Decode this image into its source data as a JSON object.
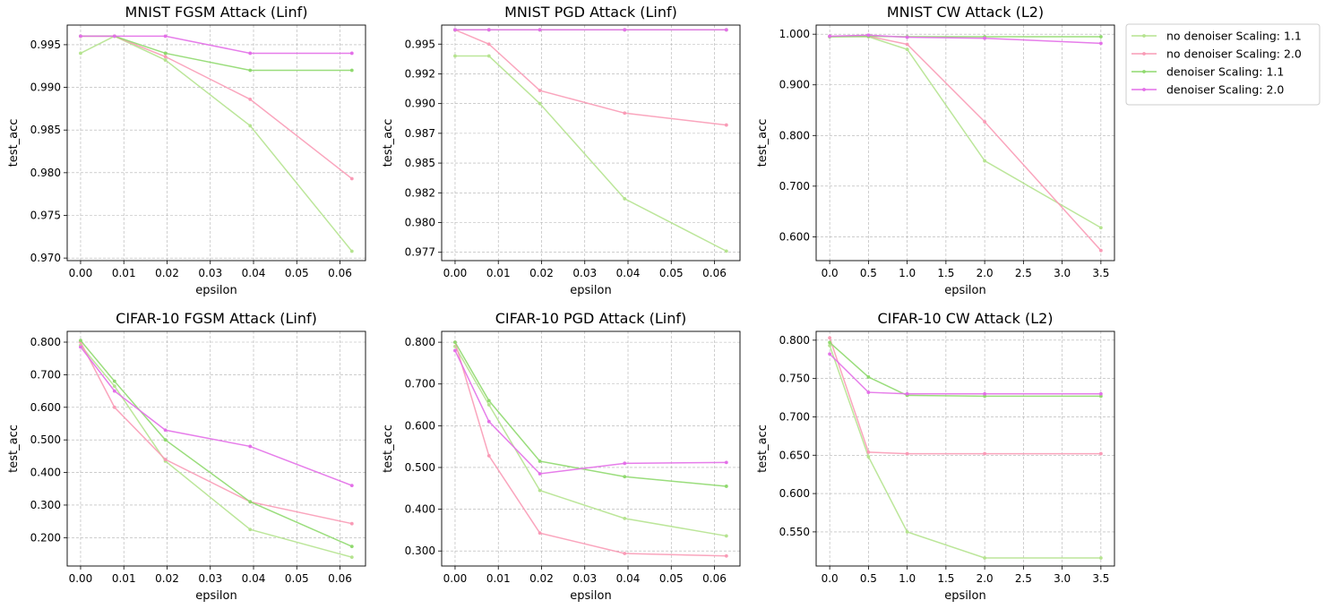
{
  "chart_data": [
    {
      "type": "line",
      "title": "MNIST FGSM Attack (Linf)",
      "xlabel": "epsilon",
      "ylabel": "test_acc",
      "xlim": [
        -0.0031,
        0.0659
      ],
      "ylim": [
        0.9697,
        0.9973
      ],
      "xticks": [
        0.0,
        0.01,
        0.02,
        0.03,
        0.04,
        0.05,
        0.06
      ],
      "xtick_labels": [
        "0.00",
        "0.01",
        "0.02",
        "0.03",
        "0.04",
        "0.05",
        "0.06"
      ],
      "yticks": [
        0.97,
        0.975,
        0.98,
        0.985,
        0.99,
        0.995
      ],
      "ytick_labels": [
        "0.970",
        "0.975",
        "0.980",
        "0.985",
        "0.990",
        "0.995"
      ],
      "grid": true,
      "x": [
        0.0,
        0.00784,
        0.01961,
        0.03922,
        0.06275
      ],
      "series": [
        {
          "name": "no denoiser Scaling: 1.1",
          "values": [
            0.994,
            0.996,
            0.9932,
            0.9855,
            0.9708
          ]
        },
        {
          "name": "no denoiser Scaling: 2.0",
          "values": [
            0.996,
            0.996,
            0.9936,
            0.9886,
            0.9793
          ]
        },
        {
          "name": "denoiser Scaling: 1.1",
          "values": [
            0.996,
            0.996,
            0.994,
            0.992,
            0.992
          ]
        },
        {
          "name": "denoiser Scaling: 2.0",
          "values": [
            0.996,
            0.996,
            0.996,
            0.994,
            0.994
          ]
        }
      ]
    },
    {
      "type": "line",
      "title": "MNIST PGD Attack (Linf)",
      "xlabel": "epsilon",
      "ylabel": "test_acc",
      "xlim": [
        -0.0031,
        0.0659
      ],
      "ylim": [
        0.9768,
        0.9966
      ],
      "xticks": [
        0.0,
        0.01,
        0.02,
        0.03,
        0.04,
        0.05,
        0.06
      ],
      "xtick_labels": [
        "0.00",
        "0.01",
        "0.02",
        "0.03",
        "0.04",
        "0.05",
        "0.06"
      ],
      "yticks": [
        0.9775,
        0.98,
        0.9825,
        0.985,
        0.9875,
        0.99,
        0.9925,
        0.995
      ],
      "ytick_labels": [
        "0.977",
        "0.980",
        "0.982",
        "0.985",
        "0.987",
        "0.990",
        "0.992",
        "0.995"
      ],
      "grid": true,
      "x": [
        0.0,
        0.00784,
        0.01961,
        0.03922,
        0.06275
      ],
      "series": [
        {
          "name": "no denoiser Scaling: 1.1",
          "values": [
            0.994,
            0.994,
            0.99,
            0.982,
            0.9776
          ]
        },
        {
          "name": "no denoiser Scaling: 2.0",
          "values": [
            0.9962,
            0.995,
            0.9911,
            0.9892,
            0.9882
          ]
        },
        {
          "name": "denoiser Scaling: 1.1",
          "values": [
            0.9962,
            0.9962,
            0.9962,
            0.9962,
            0.9962
          ]
        },
        {
          "name": "denoiser Scaling: 2.0",
          "values": [
            0.9962,
            0.9962,
            0.9962,
            0.9962,
            0.9962
          ]
        }
      ]
    },
    {
      "type": "line",
      "title": "MNIST CW Attack (L2)",
      "xlabel": "epsilon",
      "ylabel": "test_acc",
      "xlim": [
        -0.175,
        3.675
      ],
      "ylim": [
        0.553,
        1.018
      ],
      "xticks": [
        0.0,
        0.5,
        1.0,
        1.5,
        2.0,
        2.5,
        3.0,
        3.5
      ],
      "xtick_labels": [
        "0.0",
        "0.5",
        "1.0",
        "1.5",
        "2.0",
        "2.5",
        "3.0",
        "3.5"
      ],
      "yticks": [
        0.6,
        0.7,
        0.8,
        0.9,
        1.0
      ],
      "ytick_labels": [
        "0.600",
        "0.700",
        "0.800",
        "0.900",
        "1.000"
      ],
      "grid": true,
      "x": [
        0.0,
        0.5,
        1.0,
        2.0,
        3.5
      ],
      "series": [
        {
          "name": "no denoiser Scaling: 1.1",
          "values": [
            0.995,
            0.995,
            0.97,
            0.75,
            0.618
          ]
        },
        {
          "name": "no denoiser Scaling: 2.0",
          "values": [
            0.996,
            0.996,
            0.98,
            0.827,
            0.573
          ]
        },
        {
          "name": "denoiser Scaling: 1.1",
          "values": [
            0.995,
            0.996,
            0.995,
            0.995,
            0.995
          ]
        },
        {
          "name": "denoiser Scaling: 2.0",
          "values": [
            0.996,
            0.998,
            0.994,
            0.992,
            0.982
          ]
        }
      ]
    },
    {
      "type": "line",
      "title": "CIFAR-10 FGSM Attack (Linf)",
      "xlabel": "epsilon",
      "ylabel": "test_acc",
      "xlim": [
        -0.0031,
        0.0659
      ],
      "ylim": [
        0.113,
        0.833
      ],
      "xticks": [
        0.0,
        0.01,
        0.02,
        0.03,
        0.04,
        0.05,
        0.06
      ],
      "xtick_labels": [
        "0.00",
        "0.01",
        "0.02",
        "0.03",
        "0.04",
        "0.05",
        "0.06"
      ],
      "yticks": [
        0.2,
        0.3,
        0.4,
        0.5,
        0.6,
        0.7,
        0.8
      ],
      "ytick_labels": [
        "0.200",
        "0.300",
        "0.400",
        "0.500",
        "0.600",
        "0.700",
        "0.800"
      ],
      "grid": true,
      "x": [
        0.0,
        0.00784,
        0.01961,
        0.03922,
        0.06275
      ],
      "series": [
        {
          "name": "no denoiser Scaling: 1.1",
          "values": [
            0.79,
            0.665,
            0.435,
            0.225,
            0.14
          ]
        },
        {
          "name": "no denoiser Scaling: 2.0",
          "values": [
            0.8,
            0.6,
            0.44,
            0.31,
            0.243
          ]
        },
        {
          "name": "denoiser Scaling: 1.1",
          "values": [
            0.805,
            0.68,
            0.5,
            0.31,
            0.173
          ]
        },
        {
          "name": "denoiser Scaling: 2.0",
          "values": [
            0.785,
            0.65,
            0.53,
            0.48,
            0.36
          ]
        }
      ]
    },
    {
      "type": "line",
      "title": "CIFAR-10 PGD Attack (Linf)",
      "xlabel": "epsilon",
      "ylabel": "test_acc",
      "xlim": [
        -0.0031,
        0.0659
      ],
      "ylim": [
        0.264,
        0.826
      ],
      "xticks": [
        0.0,
        0.01,
        0.02,
        0.03,
        0.04,
        0.05,
        0.06
      ],
      "xtick_labels": [
        "0.00",
        "0.01",
        "0.02",
        "0.03",
        "0.04",
        "0.05",
        "0.06"
      ],
      "yticks": [
        0.3,
        0.4,
        0.5,
        0.6,
        0.7,
        0.8
      ],
      "ytick_labels": [
        "0.300",
        "0.400",
        "0.500",
        "0.600",
        "0.700",
        "0.800"
      ],
      "grid": true,
      "x": [
        0.0,
        0.00784,
        0.01961,
        0.03922,
        0.06275
      ],
      "series": [
        {
          "name": "no denoiser Scaling: 1.1",
          "values": [
            0.79,
            0.65,
            0.445,
            0.378,
            0.336
          ]
        },
        {
          "name": "no denoiser Scaling: 2.0",
          "values": [
            0.8,
            0.528,
            0.343,
            0.294,
            0.288
          ]
        },
        {
          "name": "denoiser Scaling: 1.1",
          "values": [
            0.8,
            0.66,
            0.515,
            0.478,
            0.455
          ]
        },
        {
          "name": "denoiser Scaling: 2.0",
          "values": [
            0.78,
            0.61,
            0.485,
            0.51,
            0.512
          ]
        }
      ]
    },
    {
      "type": "line",
      "title": "CIFAR-10 CW Attack (L2)",
      "xlabel": "epsilon",
      "ylabel": "test_acc",
      "xlim": [
        -0.175,
        3.675
      ],
      "ylim": [
        0.5055,
        0.8115
      ],
      "xticks": [
        0.0,
        0.5,
        1.0,
        1.5,
        2.0,
        2.5,
        3.0,
        3.5
      ],
      "xtick_labels": [
        "0.0",
        "0.5",
        "1.0",
        "1.5",
        "2.0",
        "2.5",
        "3.0",
        "3.5"
      ],
      "yticks": [
        0.55,
        0.6,
        0.65,
        0.7,
        0.75,
        0.8
      ],
      "ytick_labels": [
        "0.550",
        "0.600",
        "0.650",
        "0.700",
        "0.750",
        "0.800"
      ],
      "grid": true,
      "x": [
        0.0,
        0.5,
        1.0,
        2.0,
        3.5
      ],
      "series": [
        {
          "name": "no denoiser Scaling: 1.1",
          "values": [
            0.793,
            0.648,
            0.55,
            0.516,
            0.516
          ]
        },
        {
          "name": "no denoiser Scaling: 2.0",
          "values": [
            0.803,
            0.654,
            0.652,
            0.652,
            0.652
          ]
        },
        {
          "name": "denoiser Scaling: 1.1",
          "values": [
            0.797,
            0.752,
            0.728,
            0.727,
            0.727
          ]
        },
        {
          "name": "denoiser Scaling: 2.0",
          "values": [
            0.782,
            0.732,
            0.73,
            0.73,
            0.73
          ]
        }
      ]
    }
  ],
  "legend": {
    "placement": "outside upper right",
    "items": [
      {
        "name": "no denoiser Scaling: 1.1",
        "color": "#b5e38f"
      },
      {
        "name": "no denoiser Scaling: 2.0",
        "color": "#f99bb6"
      },
      {
        "name": "denoiser Scaling: 1.1",
        "color": "#8fd96e"
      },
      {
        "name": "denoiser Scaling: 2.0",
        "color": "#e36fe8"
      }
    ]
  },
  "series_colors": [
    "#b5e38f",
    "#f99bb6",
    "#8fd96e",
    "#e36fe8"
  ]
}
